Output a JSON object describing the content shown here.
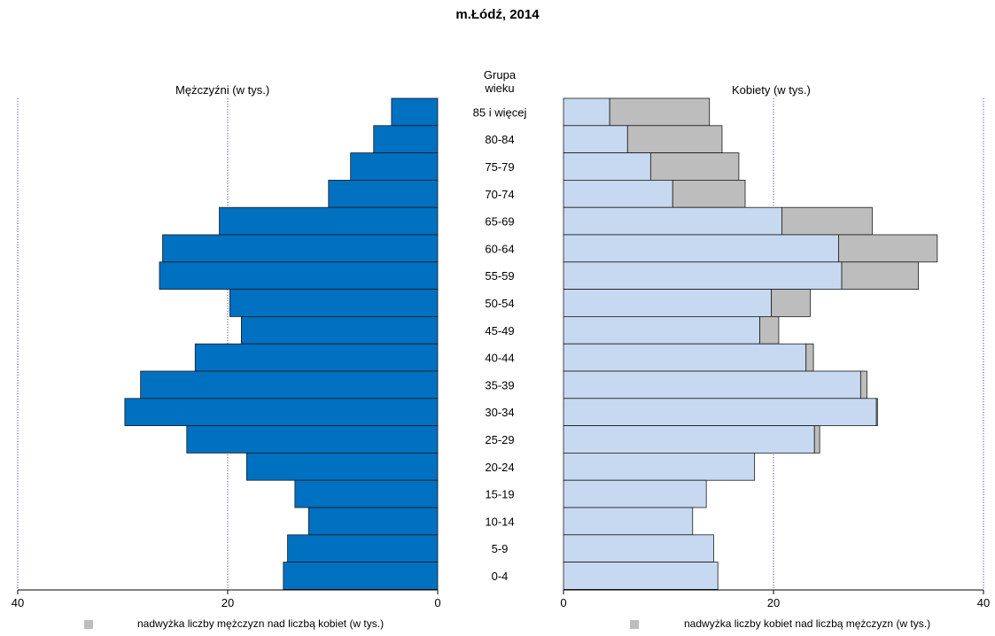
{
  "chart_data": {
    "type": "population-pyramid",
    "title": "m.Łódź, 2014",
    "left_label": "Mężczyźni (w tys.)",
    "right_label": "Kobiety (w tys.)",
    "center_header": [
      "Grupa",
      "wieku"
    ],
    "age_groups": [
      "85 i więcej",
      "80-84",
      "75-79",
      "70-74",
      "65-69",
      "60-64",
      "55-59",
      "50-54",
      "45-49",
      "40-44",
      "35-39",
      "30-34",
      "25-29",
      "20-24",
      "15-19",
      "10-14",
      "5-9",
      "0-4"
    ],
    "men": [
      4.4,
      6.1,
      8.3,
      10.4,
      20.8,
      26.2,
      26.5,
      19.8,
      18.7,
      23.1,
      28.3,
      29.8,
      23.9,
      18.2,
      13.6,
      12.3,
      14.3,
      14.7
    ],
    "women": [
      13.9,
      15.1,
      16.7,
      17.3,
      29.4,
      35.6,
      33.8,
      23.5,
      20.5,
      23.8,
      28.9,
      29.9,
      24.4,
      18.2,
      13.6,
      12.3,
      14.3,
      14.7
    ],
    "x_ticks": [
      40,
      20,
      0
    ],
    "xlim": [
      0,
      40
    ],
    "grid": "dotted vertical at 20 and 40",
    "colors": {
      "men": "#0070c0",
      "women": "#c6d9f1",
      "surplus": "#bdbdbd",
      "grid": "#3333cc"
    },
    "legend": {
      "men_surplus": "nadwyżka liczby mężczyzn nad liczbą kobiet (w tys.)",
      "women_surplus": "nadwyżka liczby kobiet nad liczbą mężczyzn (w tys.)"
    }
  }
}
